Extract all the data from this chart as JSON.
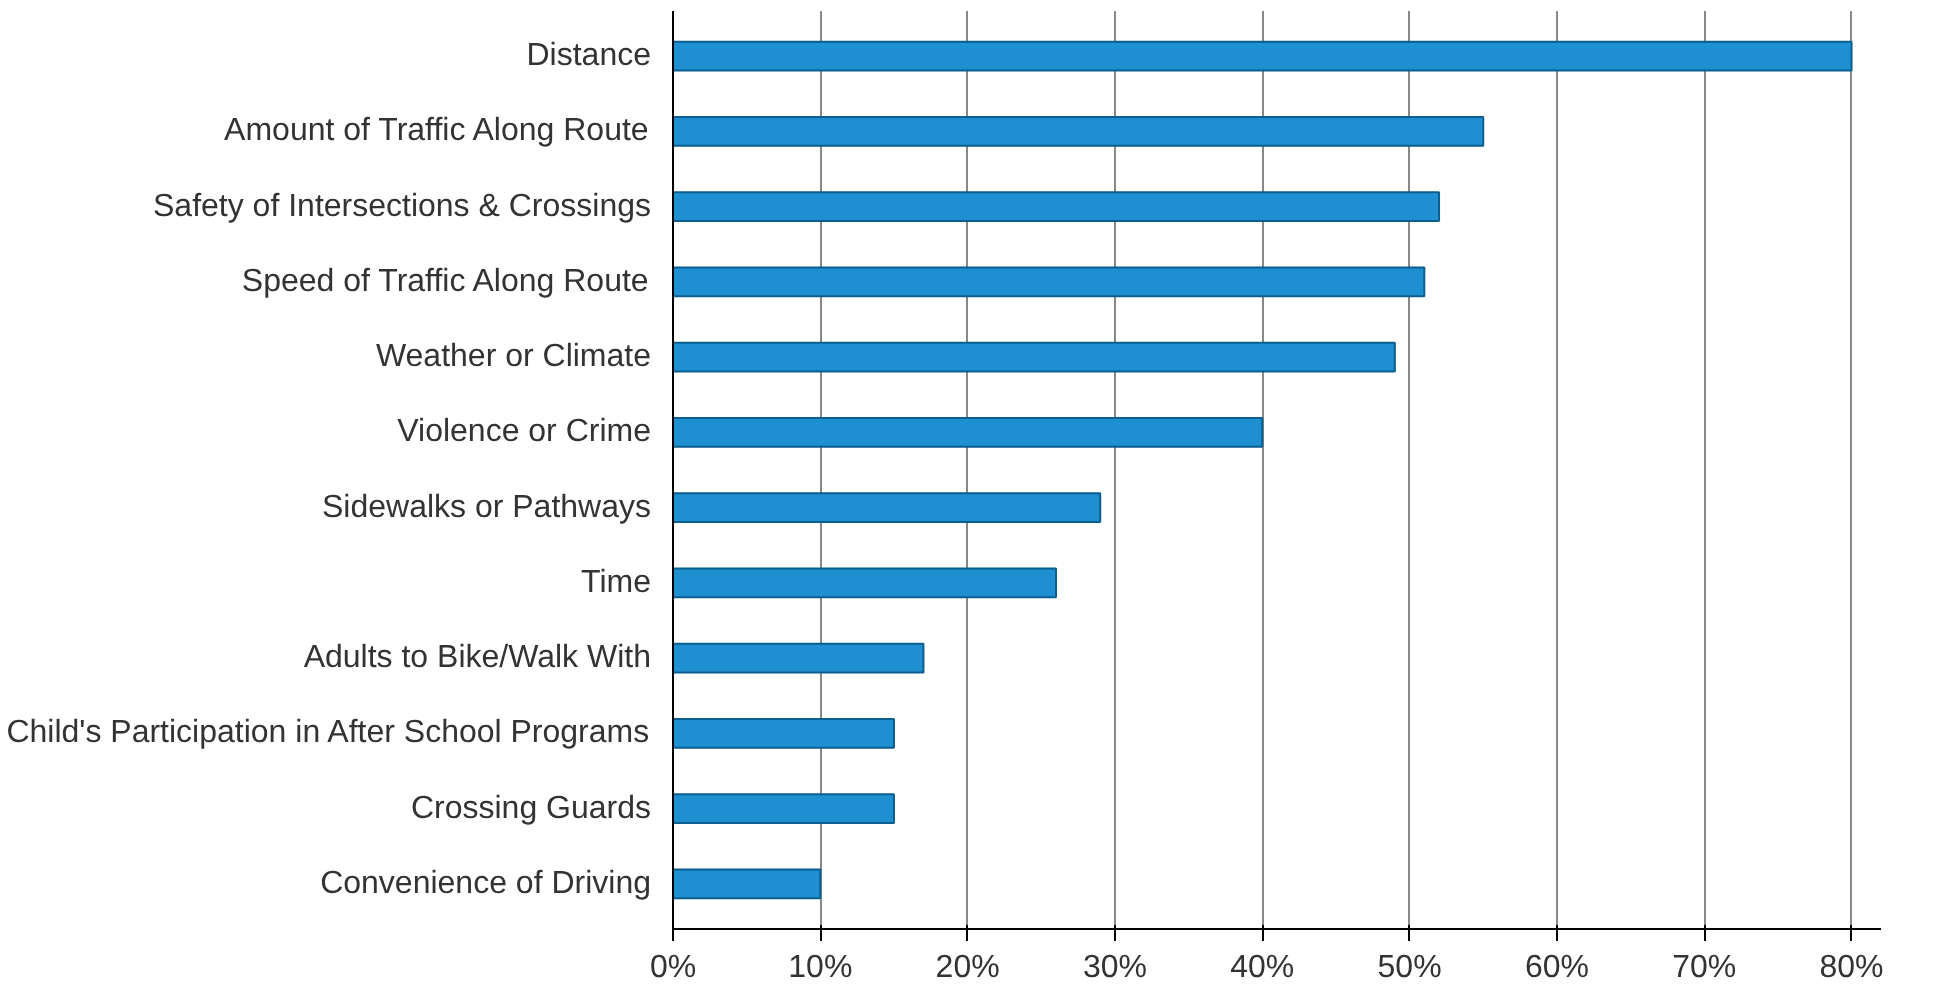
{
  "chart_data": {
    "type": "bar",
    "orientation": "horizontal",
    "categories": [
      "Distance",
      "Amount of Traffic Along Route",
      "Safety of Intersections & Crossings",
      "Speed of Traffic Along Route",
      "Weather or Climate",
      "Violence or Crime",
      "Sidewalks or Pathways",
      "Time",
      "Adults to Bike/Walk With",
      "Child's Participation in After School Programs",
      "Crossing Guards",
      "Convenience of Driving"
    ],
    "values": [
      80,
      55,
      52,
      51,
      49,
      40,
      29,
      26,
      17,
      15,
      15,
      10
    ],
    "color": "#1e8fd0",
    "xlim": [
      0,
      82
    ],
    "xticks": [
      {
        "value": 0,
        "label": "0%"
      },
      {
        "value": 10,
        "label": "10%"
      },
      {
        "value": 20,
        "label": "20%"
      },
      {
        "value": 30,
        "label": "30%"
      },
      {
        "value": 40,
        "label": "40%"
      },
      {
        "value": 50,
        "label": "50%"
      },
      {
        "value": 60,
        "label": "60%"
      },
      {
        "value": 70,
        "label": "70%"
      },
      {
        "value": 80,
        "label": "80%"
      }
    ],
    "grid": "x"
  }
}
